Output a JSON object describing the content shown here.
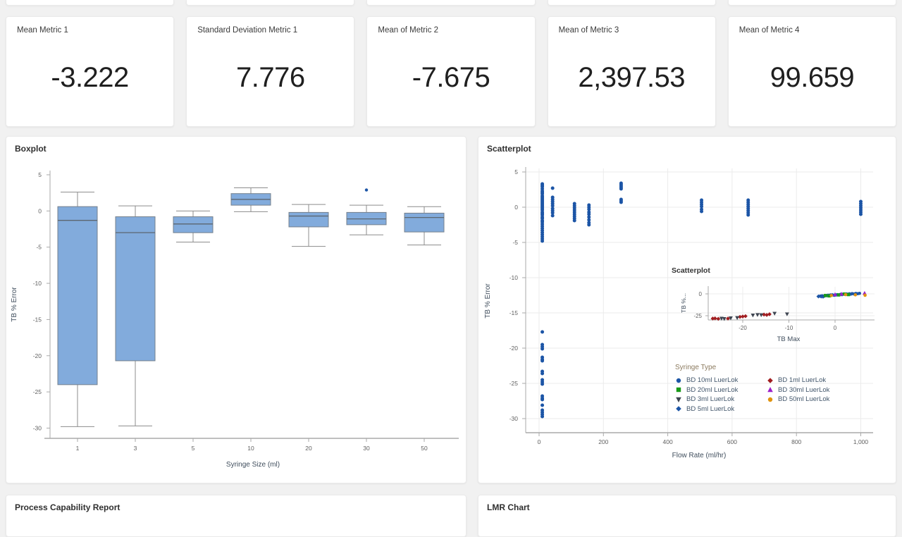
{
  "app": {
    "background": "#f1f1f1",
    "card_background": "#ffffff"
  },
  "metric_cards": [
    {
      "label": "Mean Metric 1",
      "value": "-3.222"
    },
    {
      "label": "Standard Deviation Metric 1",
      "value": "7.776"
    },
    {
      "label": "Mean of Metric 2",
      "value": "-7.675"
    },
    {
      "label": "Mean of Metric 3",
      "value": "2,397.53"
    },
    {
      "label": "Mean of Metric 4",
      "value": "99.659"
    }
  ],
  "panels": {
    "boxplot": {
      "title": "Boxplot"
    },
    "scatterplot": {
      "title": "Scatterplot"
    },
    "process_capability": {
      "title": "Process Capability Report"
    },
    "lmr_chart": {
      "title": "LMR Chart"
    }
  },
  "legend": {
    "title": "Syringe Type",
    "columns": [
      [
        {
          "label": "BD 10ml LuerLok",
          "marker": "circle",
          "color": "#1C55A6"
        },
        {
          "label": "BD 20ml LuerLok",
          "marker": "square",
          "color": "#189A18"
        },
        {
          "label": "BD 3ml LuerLok",
          "marker": "triangle-down",
          "color": "#3D4450"
        },
        {
          "label": "BD 5ml LuerLok",
          "marker": "diamond",
          "color": "#1C55A6"
        }
      ],
      [
        {
          "label": "BD 1ml LuerLok",
          "marker": "diamond",
          "color": "#A11D20"
        },
        {
          "label": "BD 30ml LuerLok",
          "marker": "triangle-up",
          "color": "#9B1FC9"
        },
        {
          "label": "BD 50ml LuerLok",
          "marker": "circle",
          "color": "#E0930F"
        }
      ]
    ]
  },
  "chart_data": [
    {
      "id": "boxplot",
      "type": "boxplot",
      "title": "Boxplot",
      "xlabel": "Syringe Size (ml)",
      "ylabel": "TB % Error",
      "yticks": [
        5,
        0,
        -5,
        -10,
        -15,
        -20,
        -25,
        -30
      ],
      "ylim": [
        -31.5,
        5.5
      ],
      "grid": false,
      "categories": [
        "1",
        "3",
        "5",
        "10",
        "20",
        "30",
        "50"
      ],
      "box_fill": "#82ABDC",
      "box_stroke": "#75808C",
      "median_color": "#5C6670",
      "whisker_color": "#8C8C8C",
      "outlier_color": "#1C55A6",
      "boxes": [
        {
          "category": "1",
          "whisker_low": -29.8,
          "q1": -24.0,
          "median": -1.3,
          "q3": 0.6,
          "whisker_high": 2.6,
          "outliers": []
        },
        {
          "category": "3",
          "whisker_low": -29.7,
          "q1": -20.7,
          "median": -3.0,
          "q3": -0.8,
          "whisker_high": 0.7,
          "outliers": []
        },
        {
          "category": "5",
          "whisker_low": -4.3,
          "q1": -3.0,
          "median": -1.8,
          "q3": -0.8,
          "whisker_high": 0.0,
          "outliers": []
        },
        {
          "category": "10",
          "whisker_low": -0.1,
          "q1": 0.8,
          "median": 1.6,
          "q3": 2.4,
          "whisker_high": 3.2,
          "outliers": []
        },
        {
          "category": "20",
          "whisker_low": -4.9,
          "q1": -2.2,
          "median": -0.7,
          "q3": -0.2,
          "whisker_high": 0.9,
          "outliers": []
        },
        {
          "category": "30",
          "whisker_low": -3.3,
          "q1": -1.9,
          "median": -1.1,
          "q3": -0.2,
          "whisker_high": 0.8,
          "outliers": [
            2.9
          ]
        },
        {
          "category": "50",
          "whisker_low": -4.7,
          "q1": -2.9,
          "median": -0.9,
          "q3": -0.3,
          "whisker_high": 0.6,
          "outliers": []
        }
      ]
    },
    {
      "id": "scatter_main",
      "type": "scatter",
      "title": "Scatterplot",
      "xlabel": "Flow Rate (ml/hr)",
      "ylabel": "TB % Error",
      "xticks": [
        0,
        200,
        400,
        600,
        800,
        1000
      ],
      "xtick_labels": [
        "0",
        "200",
        "400",
        "600",
        "800",
        "1,000"
      ],
      "yticks": [
        5,
        0,
        -5,
        -10,
        -15,
        -20,
        -25,
        -30
      ],
      "xlim": [
        -45,
        1045
      ],
      "ylim": [
        -32,
        5.5
      ],
      "grid": true,
      "legend_position": "inside-right",
      "point_color": "#1C55A6",
      "point_columns": [
        {
          "x": 10,
          "ys": [
            3.3,
            3.1,
            2.9,
            2.6,
            2.3,
            2.1,
            1.9,
            1.6,
            1.4,
            1.2,
            1.0,
            0.8,
            0.6,
            0.4,
            0.2,
            0,
            -0.2,
            -0.4,
            -0.7,
            -0.9,
            -1.1,
            -1.4,
            -1.6,
            -1.9,
            -2.1,
            -2.4,
            -2.7,
            -3.0,
            -3.3,
            -3.6,
            -3.9,
            -4.2,
            -4.5,
            -4.8
          ]
        },
        {
          "x": 10,
          "ys": [
            -17.7,
            -19.5,
            -19.8,
            -20.1,
            -21.3,
            -21.6,
            -21.8,
            -23.3,
            -23.6,
            -24.5,
            -24.8,
            -25.1,
            -26.8,
            -27.1,
            -27.3,
            -28.1,
            -28.8,
            -29.1,
            -29.4,
            -29.7
          ]
        },
        {
          "x": 42,
          "ys": [
            2.7,
            1.4,
            1.1,
            0.8,
            0.5,
            0.2,
            -0.2,
            -0.5,
            -0.8,
            -1.2
          ]
        },
        {
          "x": 110,
          "ys": [
            0.5,
            0.2,
            -0.1,
            -0.4,
            -0.7,
            -1.0,
            -1.3,
            -1.6,
            -1.9
          ]
        },
        {
          "x": 155,
          "ys": [
            0.3,
            0,
            -0.3,
            -0.7,
            -1.0,
            -1.4,
            -1.8,
            -2.2,
            -2.5
          ]
        },
        {
          "x": 255,
          "ys": [
            3.4,
            3.2,
            3.0,
            2.8,
            2.6,
            1.1,
            0.9,
            0.7
          ]
        },
        {
          "x": 505,
          "ys": [
            1.0,
            0.7,
            0.4,
            0.1,
            -0.3,
            -0.6
          ]
        },
        {
          "x": 650,
          "ys": [
            1.0,
            0.7,
            0.4,
            0.1,
            -0.2,
            -0.5,
            -0.8,
            -1.1
          ]
        },
        {
          "x": 1000,
          "ys": [
            0.8,
            0.5,
            0.2,
            -0.1,
            -0.4,
            -0.7,
            -1.0
          ]
        }
      ]
    },
    {
      "id": "scatter_inset",
      "type": "scatter",
      "title": "Scatterplot",
      "xlabel": "TB Max",
      "ylabel": "TB %...",
      "xticks": [
        -20,
        -10,
        0
      ],
      "yticks": [
        0,
        -25
      ],
      "grid": true,
      "series": [
        {
          "name": "BD 1ml LuerLok",
          "marker": "diamond",
          "color": "#A11D20",
          "points": [
            [
              -26.5,
              -28.2
            ],
            [
              -26,
              -28
            ],
            [
              -25.3,
              -28.5
            ],
            [
              -23.2,
              -28.2
            ],
            [
              -20.6,
              -26.3
            ],
            [
              -20,
              -25.9
            ],
            [
              -19.4,
              -25.5
            ],
            [
              -15.4,
              -23.7
            ],
            [
              -14.8,
              -24.1
            ],
            [
              -14.2,
              -23.3
            ]
          ]
        },
        {
          "name": "BD 3ml LuerLok",
          "marker": "triangle-down",
          "color": "#3D4450",
          "points": [
            [
              -24.6,
              -28.1
            ],
            [
              -24,
              -28.5
            ],
            [
              -22.6,
              -27.7
            ],
            [
              -21.2,
              -27.4
            ],
            [
              -17.8,
              -24.4
            ],
            [
              -16.8,
              -23.9
            ],
            [
              -16,
              -24.1
            ],
            [
              -13.1,
              -22.4
            ],
            [
              -10.4,
              -23.1
            ]
          ]
        },
        {
          "name": "BD 10ml LuerLok",
          "marker": "circle",
          "color": "#1C55A6",
          "points": [
            [
              -3.2,
              -2.6
            ],
            [
              -2.8,
              -2.3
            ],
            [
              -2.4,
              -2.7
            ],
            [
              -1.9,
              -2
            ],
            [
              -1.5,
              -1.6
            ],
            [
              -1,
              -1.3
            ],
            [
              -0.6,
              -1.1
            ],
            [
              -0.2,
              -1.6
            ],
            [
              0.2,
              -1.3
            ],
            [
              0.5,
              -0.9
            ],
            [
              0.9,
              -1.1
            ],
            [
              1.2,
              -0.5
            ],
            [
              1.5,
              -0.9
            ],
            [
              1.8,
              -0.3
            ],
            [
              2.2,
              -0.7
            ],
            [
              2.5,
              -0.1
            ],
            [
              2.8,
              -0.5
            ],
            [
              3.1,
              0.1
            ],
            [
              3.4,
              -0.3
            ],
            [
              3.7,
              0.3
            ],
            [
              4.1,
              -0.1
            ],
            [
              4.5,
              0.5
            ],
            [
              4.9,
              0.2
            ],
            [
              5.3,
              0.6
            ]
          ]
        },
        {
          "name": "BD 5ml LuerLok",
          "marker": "diamond",
          "color": "#1C55A6",
          "points": [
            [
              -3.6,
              -2.9
            ],
            [
              -3,
              -3
            ],
            [
              -2.6,
              -3.2
            ]
          ]
        },
        {
          "name": "BD 20ml LuerLok",
          "marker": "square",
          "color": "#189A18",
          "points": [
            [
              -2.1,
              -1.9
            ],
            [
              -1.3,
              -2.3
            ],
            [
              0.8,
              -1.2
            ],
            [
              2,
              -0.2
            ],
            [
              2.9,
              -0.8
            ]
          ]
        },
        {
          "name": "BD 30ml LuerLok",
          "marker": "triangle-up",
          "color": "#9B1FC9",
          "points": [
            [
              0,
              -0.7
            ],
            [
              1.4,
              -0.2
            ],
            [
              6.4,
              0.8
            ]
          ]
        },
        {
          "name": "BD 50ml LuerLok",
          "marker": "circle",
          "color": "#E0930F",
          "points": [
            [
              -0.8,
              -1.9
            ],
            [
              2.3,
              -0.8
            ],
            [
              4.4,
              -1.1
            ],
            [
              6.5,
              -1.6
            ]
          ]
        }
      ]
    }
  ]
}
